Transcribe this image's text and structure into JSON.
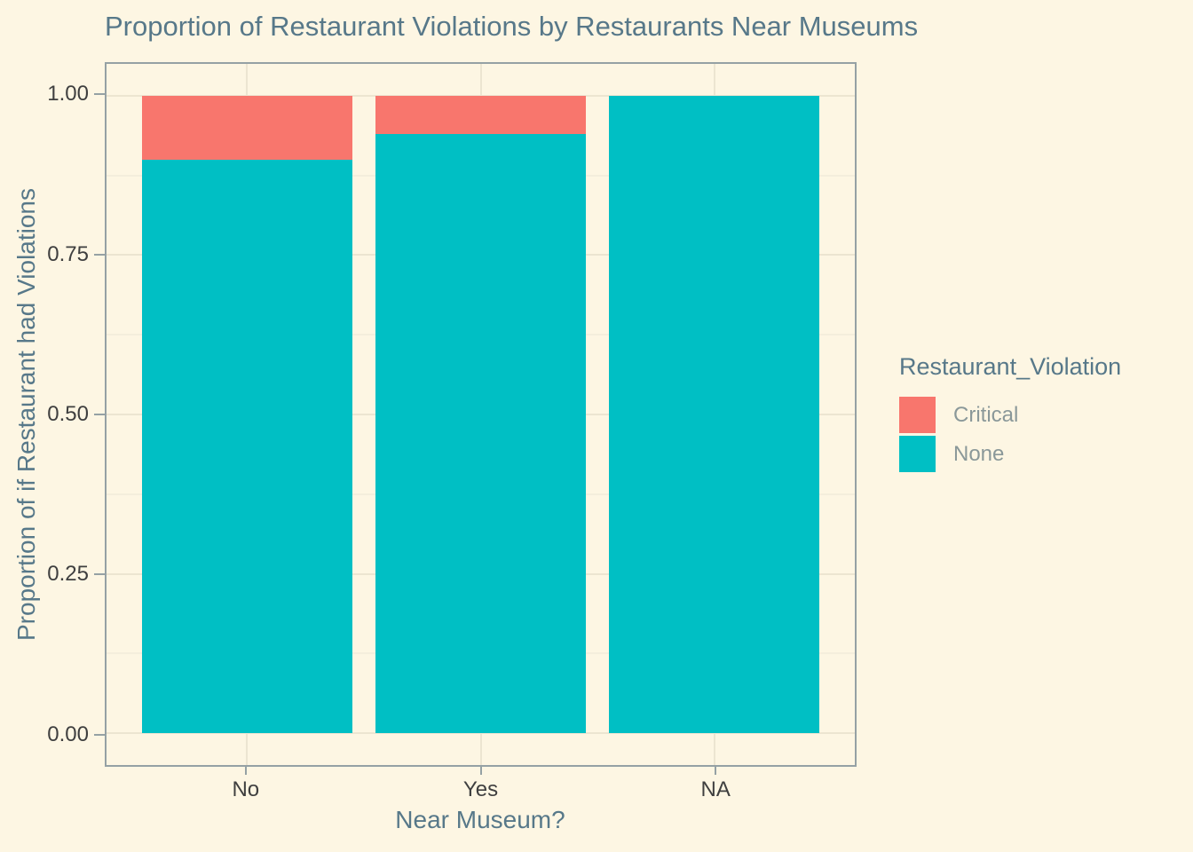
{
  "title": "Proportion of Restaurant Violations by Restaurants Near Museums",
  "axes": {
    "x_title": "Near Museum?",
    "y_title": "Proportion of if Restaurant had Violations",
    "x_tick_labels": [
      "No",
      "Yes",
      "NA"
    ],
    "y_tick_labels": [
      "0.00",
      "0.25",
      "0.50",
      "0.75",
      "1.00"
    ]
  },
  "legend": {
    "title": "Restaurant_Violation",
    "items": [
      {
        "label": "Critical",
        "color": "#F8766D"
      },
      {
        "label": "None",
        "color": "#00BFC4"
      }
    ]
  },
  "chart_data": {
    "type": "bar",
    "stacked": true,
    "title": "Proportion of Restaurant Violations by Restaurants Near Museums",
    "xlabel": "Near Museum?",
    "ylabel": "Proportion of if Restaurant had Violations",
    "categories": [
      "No",
      "Yes",
      "NA"
    ],
    "series": [
      {
        "name": "Critical",
        "color": "#F8766D",
        "values": [
          0.1,
          0.06,
          0.0
        ]
      },
      {
        "name": "None",
        "color": "#00BFC4",
        "values": [
          0.9,
          0.94,
          1.0
        ]
      }
    ],
    "ylim": [
      0,
      1
    ],
    "y_major_ticks": [
      0,
      0.25,
      0.5,
      0.75,
      1.0
    ],
    "y_minor_ticks": [
      0.125,
      0.375,
      0.625,
      0.875
    ],
    "y_expand": 0.05,
    "bar_width_fraction": 0.9,
    "grid": true,
    "legend_position": "right"
  },
  "colors": {
    "background": "#FDF6E3",
    "grid_major": "#ECE5D1",
    "grid_minor": "#F4EEDC",
    "panel_border": "#95A1A4",
    "tick_mark": "#95A1A4",
    "title_text": "#577889",
    "axis_tick_text": "#3F3F3F",
    "legend_label_text": "#8A9899"
  }
}
